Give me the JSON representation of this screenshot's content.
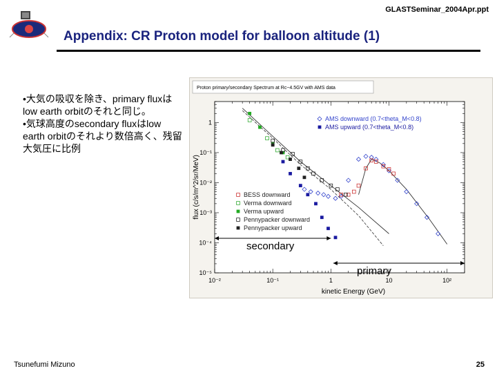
{
  "header": {
    "filename": "GLASTSeminar_2004Apr.ppt"
  },
  "slide": {
    "title": "Appendix: CR Proton model for balloon altitude (1)",
    "bullets": [
      "•大気の吸収を除き、primary fluxはlow earth orbitのそれと同じ。",
      "•気球高度のsecondary fluxはlow earth orbitのそれより数倍高く、残留大気圧に比例"
    ]
  },
  "footer": {
    "author": "Tsunefumi Mizuno",
    "page": "25"
  },
  "chart_data": {
    "type": "scatter",
    "title": "Proton primary/secondary Spectrum at Rc~4.5GV with AMS data",
    "xlabel": "kinetic Energy (GeV)",
    "ylabel": "flux (c/s/m^2/sr/MeV)",
    "xscale": "log",
    "yscale": "log",
    "xlim": [
      0.01,
      200
    ],
    "ylim": [
      1e-05,
      5
    ],
    "x_ticks": [
      "10⁻²",
      "10⁻¹",
      "1",
      "10",
      "10²"
    ],
    "y_ticks": [
      "1",
      "10⁻¹",
      "10⁻²",
      "10⁻³",
      "10⁻⁴",
      "10⁻⁵"
    ],
    "legend_top": [
      {
        "name": "AMS downward (0.7<theta_M<0.8)",
        "marker": "open-diamond",
        "color": "#3344cc"
      },
      {
        "name": "AMS upward (0.7<theta_M<0.8)",
        "marker": "filled-square",
        "color": "#1a1aa0"
      }
    ],
    "legend_bottom": [
      {
        "name": "BESS downward",
        "marker": "open-square",
        "color": "#cc3333"
      },
      {
        "name": "Verma downward",
        "marker": "open-square",
        "color": "#33aa33"
      },
      {
        "name": "Verma upward",
        "marker": "filled-square",
        "color": "#22aa22"
      },
      {
        "name": "Pennypacker downward",
        "marker": "open-square",
        "color": "#222222"
      },
      {
        "name": "Pennypacker upward",
        "marker": "filled-square",
        "color": "#222222"
      }
    ],
    "annotations": [
      {
        "text": "secondary"
      },
      {
        "text": "primary"
      }
    ],
    "series": [
      {
        "name": "AMS downward (0.7<theta_M<0.8)",
        "marker": "open-diamond",
        "color": "#3344cc",
        "x": [
          0.35,
          0.45,
          0.6,
          0.75,
          0.9,
          1.2,
          1.5,
          2.0,
          3.0,
          4.0,
          5.0,
          6.0,
          8.0,
          10,
          14,
          20,
          30,
          45,
          70
        ],
        "y": [
          0.006,
          0.005,
          0.0045,
          0.004,
          0.0035,
          0.003,
          0.0035,
          0.012,
          0.06,
          0.075,
          0.07,
          0.06,
          0.04,
          0.025,
          0.012,
          0.005,
          0.002,
          0.0007,
          0.0002
        ]
      },
      {
        "name": "AMS upward (0.7<theta_M<0.8)",
        "marker": "filled-square",
        "color": "#1a1aa0",
        "x": [
          0.15,
          0.2,
          0.3,
          0.4,
          0.55,
          0.7,
          0.9,
          1.2
        ],
        "y": [
          0.05,
          0.02,
          0.008,
          0.004,
          0.002,
          0.0007,
          0.0003,
          0.00015
        ]
      },
      {
        "name": "BESS downward",
        "marker": "open-square",
        "color": "#cc3333",
        "x": [
          1.5,
          2.0,
          2.5,
          3.0,
          4.0,
          5.0,
          6.0,
          8.0,
          10,
          12
        ],
        "y": [
          0.004,
          0.004,
          0.005,
          0.008,
          0.03,
          0.055,
          0.05,
          0.035,
          0.028,
          0.02
        ]
      },
      {
        "name": "Verma downward",
        "marker": "open-square",
        "color": "#33aa33",
        "x": [
          0.04,
          0.08,
          0.12,
          0.18
        ],
        "y": [
          1.2,
          0.3,
          0.12,
          0.07
        ]
      },
      {
        "name": "Verma upward",
        "marker": "filled-square",
        "color": "#22aa22",
        "x": [
          0.04,
          0.06,
          0.1,
          0.15
        ],
        "y": [
          2.0,
          0.7,
          0.2,
          0.1
        ]
      },
      {
        "name": "Pennypacker downward",
        "marker": "open-square",
        "color": "#222222",
        "x": [
          0.1,
          0.15,
          0.22,
          0.3,
          0.4,
          0.5,
          0.7,
          1.0,
          1.3,
          1.8
        ],
        "y": [
          0.25,
          0.12,
          0.09,
          0.05,
          0.03,
          0.02,
          0.012,
          0.008,
          0.006,
          0.004
        ]
      },
      {
        "name": "Pennypacker upward",
        "marker": "filled-square",
        "color": "#222222",
        "x": [
          0.1,
          0.14,
          0.2,
          0.28,
          0.35
        ],
        "y": [
          0.18,
          0.1,
          0.06,
          0.03,
          0.015
        ]
      }
    ],
    "model_lines": [
      {
        "name": "secondary downward model",
        "style": "dashed",
        "color": "#444444",
        "x": [
          0.03,
          0.1,
          0.3,
          1.0,
          3.0,
          8.0
        ],
        "y": [
          2.5,
          0.3,
          0.04,
          0.006,
          0.0008,
          8e-05
        ]
      },
      {
        "name": "secondary upward model",
        "style": "solid",
        "color": "#333333",
        "x": [
          0.03,
          0.1,
          0.3,
          1.0,
          3.0,
          10
        ],
        "y": [
          3.0,
          0.35,
          0.05,
          0.008,
          0.0015,
          0.0002
        ]
      },
      {
        "name": "primary model",
        "style": "solid",
        "color": "#333333",
        "x": [
          3.0,
          4.0,
          5.0,
          7.0,
          10,
          20,
          50,
          100
        ],
        "y": [
          0.004,
          0.03,
          0.06,
          0.045,
          0.025,
          0.006,
          0.0006,
          9e-05
        ]
      }
    ]
  }
}
